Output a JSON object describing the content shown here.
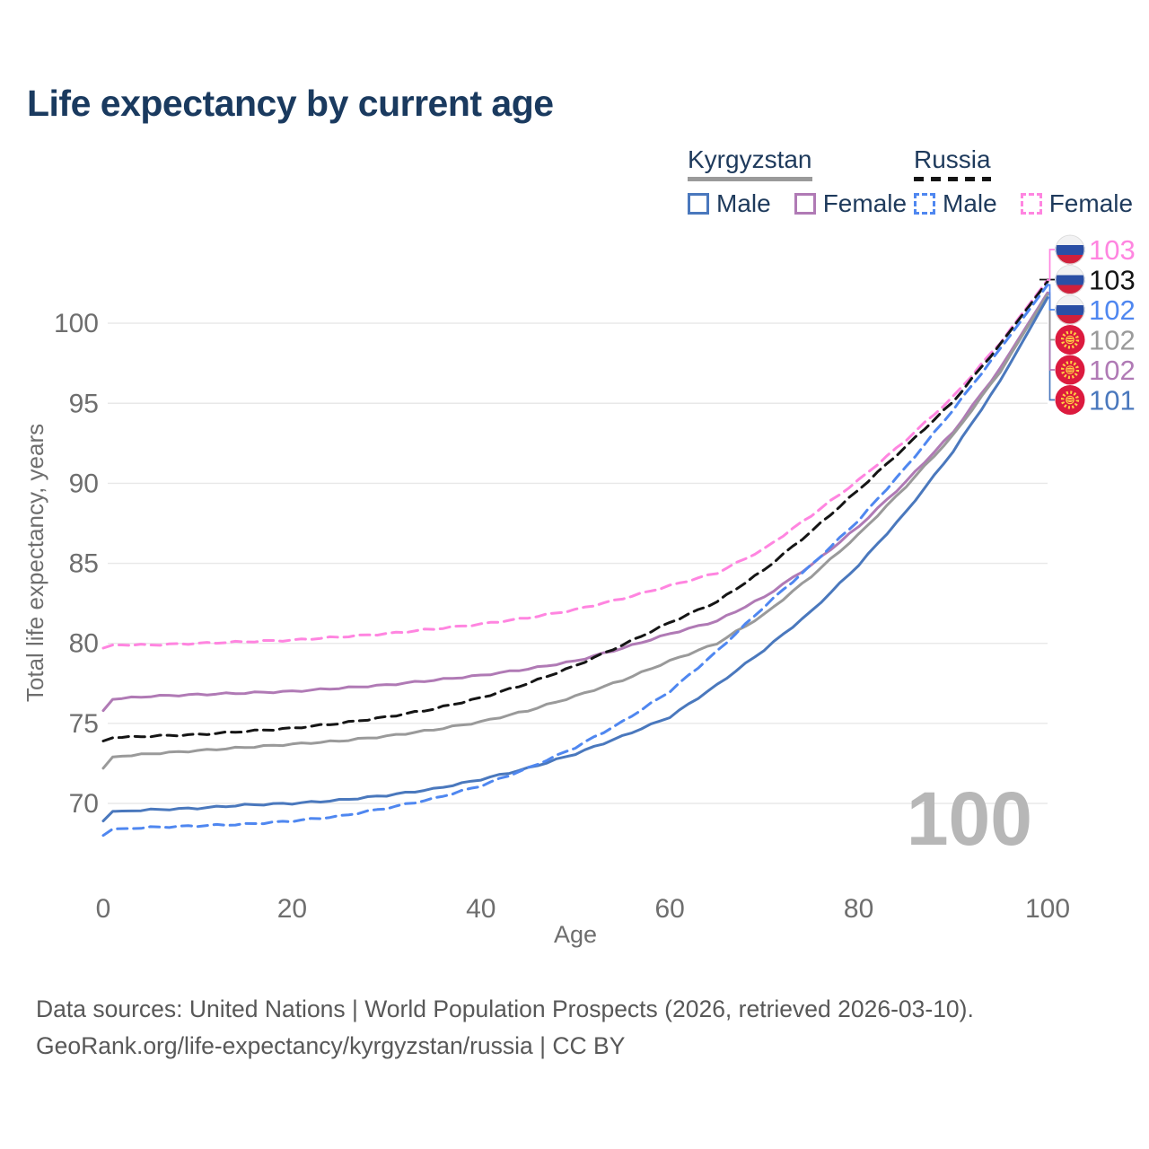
{
  "title": "Life expectancy by current age",
  "legend": {
    "groups": [
      {
        "country": "Kyrgyzstan",
        "line_style": "solid",
        "underline_color": "#9a9a9a",
        "items": [
          {
            "label": "Male",
            "color": "#4a78bd",
            "dashed": false
          },
          {
            "label": "Female",
            "color": "#b07ab5",
            "dashed": false
          }
        ]
      },
      {
        "country": "Russia",
        "line_style": "dashed",
        "underline_color": "#151515",
        "items": [
          {
            "label": "Male",
            "color": "#4f87f0",
            "dashed": true
          },
          {
            "label": "Female",
            "color": "#ff85e0",
            "dashed": true
          }
        ]
      }
    ]
  },
  "chart_data": {
    "type": "line",
    "title": "Life expectancy by current age",
    "xlabel": "Age",
    "ylabel": "Total life expectancy, years",
    "x_ticks": [
      0,
      20,
      40,
      60,
      80,
      100
    ],
    "y_ticks": [
      70,
      75,
      80,
      85,
      90,
      95,
      100
    ],
    "xlim": [
      0,
      100
    ],
    "ylim": [
      67,
      104
    ],
    "grid": "horizontal",
    "age_cursor_watermark": "100",
    "x": [
      0,
      1,
      5,
      10,
      15,
      20,
      25,
      30,
      35,
      40,
      45,
      50,
      55,
      60,
      65,
      70,
      75,
      80,
      85,
      90,
      95,
      100
    ],
    "series": [
      {
        "name": "Kyrgyzstan Female",
        "country": "Kyrgyzstan",
        "sex": "Female",
        "color": "#b07ab5",
        "dashed": false,
        "flag": "kyrgyzstan",
        "end_label": "102",
        "end_row": 4,
        "values": [
          75.8,
          76.5,
          76.7,
          76.8,
          76.9,
          77.0,
          77.2,
          77.4,
          77.7,
          78.0,
          78.4,
          78.9,
          79.7,
          80.6,
          81.4,
          82.9,
          84.9,
          87.3,
          90.1,
          93.2,
          97.2,
          101.9
        ]
      },
      {
        "name": "Kyrgyzstan All",
        "country": "Kyrgyzstan",
        "sex": "All",
        "color": "#9a9a9a",
        "dashed": false,
        "flag": "kyrgyzstan",
        "end_label": "102",
        "end_row": 3,
        "values": [
          72.2,
          72.9,
          73.1,
          73.3,
          73.5,
          73.7,
          73.9,
          74.2,
          74.6,
          75.1,
          75.8,
          76.7,
          77.7,
          78.9,
          80.0,
          81.8,
          84.2,
          86.8,
          89.8,
          93.0,
          97.0,
          101.8
        ]
      },
      {
        "name": "Kyrgyzstan Male",
        "country": "Kyrgyzstan",
        "sex": "Male",
        "color": "#4a78bd",
        "dashed": false,
        "flag": "kyrgyzstan",
        "end_label": "101",
        "end_row": 5,
        "values": [
          68.9,
          69.5,
          69.6,
          69.7,
          69.9,
          70.0,
          70.2,
          70.5,
          70.9,
          71.5,
          72.2,
          73.1,
          74.2,
          75.4,
          77.4,
          79.6,
          82.0,
          84.9,
          88.2,
          92.0,
          96.4,
          101.6
        ]
      },
      {
        "name": "Russia Female",
        "country": "Russia",
        "sex": "Female",
        "color": "#ff85e0",
        "dashed": true,
        "flag": "russia",
        "end_label": "103",
        "end_row": 0,
        "values": [
          79.7,
          79.9,
          79.9,
          80.0,
          80.1,
          80.2,
          80.4,
          80.6,
          80.9,
          81.2,
          81.6,
          82.1,
          82.8,
          83.6,
          84.4,
          85.9,
          88.0,
          90.2,
          92.7,
          95.4,
          98.8,
          102.7
        ]
      },
      {
        "name": "Russia All",
        "country": "Russia",
        "sex": "All",
        "color": "#151515",
        "dashed": true,
        "flag": "russia",
        "end_label": "103",
        "end_row": 1,
        "values": [
          73.9,
          74.1,
          74.2,
          74.3,
          74.5,
          74.7,
          75.0,
          75.4,
          75.9,
          76.6,
          77.5,
          78.6,
          79.9,
          81.3,
          82.6,
          84.6,
          87.0,
          89.6,
          92.3,
          95.1,
          98.7,
          102.6
        ]
      },
      {
        "name": "Russia Male",
        "country": "Russia",
        "sex": "Male",
        "color": "#4f87f0",
        "dashed": true,
        "flag": "russia",
        "end_label": "102",
        "end_row": 2,
        "values": [
          68.0,
          68.4,
          68.5,
          68.6,
          68.7,
          68.9,
          69.2,
          69.7,
          70.3,
          71.1,
          72.2,
          73.5,
          75.1,
          77.0,
          79.5,
          82.3,
          84.9,
          87.7,
          91.0,
          94.6,
          98.4,
          102.4
        ]
      }
    ],
    "flag_colors": {
      "kyrgyzstan_red": "#dc1a3e",
      "kyrgyzstan_sun": "#ffd143",
      "russia_white": "#f2f2f3",
      "russia_blue": "#2b4fa5",
      "russia_red": "#d1203b"
    }
  },
  "footer": {
    "line1": "Data sources: United Nations | World Population Prospects (2026, retrieved 2026-03-10).",
    "line2": "GeoRank.org/life-expectancy/kyrgyzstan/russia | CC BY"
  }
}
